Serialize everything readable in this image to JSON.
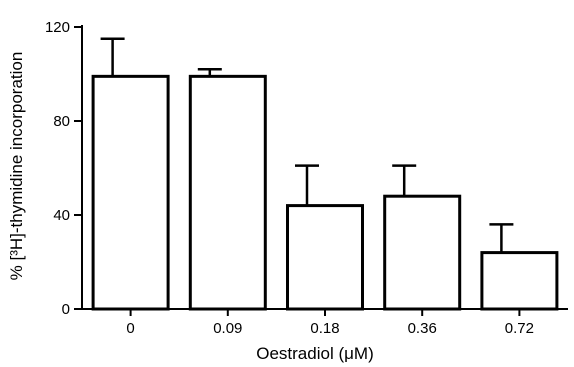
{
  "chart_data": {
    "type": "bar",
    "title": "",
    "xlabel": "Oestradiol (μM)",
    "ylabel": "% [³H]-thymidine incorporation",
    "categories": [
      "0",
      "0.09",
      "0.18",
      "0.36",
      "0.72"
    ],
    "values": [
      99,
      99,
      44,
      48,
      24
    ],
    "error_upper": [
      16,
      3,
      17,
      13,
      12
    ],
    "ylim": [
      0,
      120
    ],
    "yticks": [
      0,
      40,
      80,
      120
    ],
    "grid": false,
    "legend": "none",
    "colors": {
      "bar_fill": "#ffffff",
      "stroke": "#000000"
    }
  }
}
